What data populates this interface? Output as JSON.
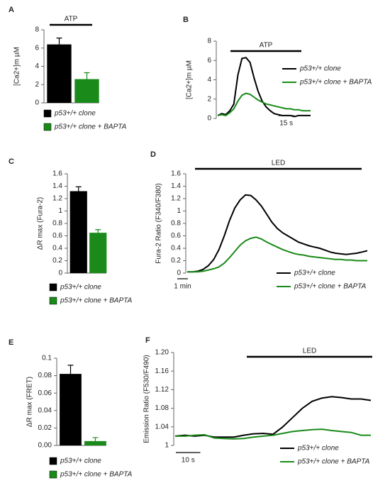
{
  "chart_data": [
    {
      "type": "bar",
      "panel": "A",
      "ylabel": "[Ca2+]m µM",
      "annotation": "ATP",
      "ylim": [
        0,
        8
      ],
      "yticks": [
        0,
        2,
        4,
        6,
        8
      ],
      "series": [
        {
          "name": "p53+/+ clone",
          "color": "#000000",
          "values": [
            6.4
          ],
          "errors": [
            0.7
          ]
        },
        {
          "name": "p53+/+ clone + BAPTA",
          "color": "#1a8a1a",
          "values": [
            2.6
          ],
          "errors": [
            0.7
          ]
        }
      ]
    },
    {
      "type": "line",
      "panel": "B",
      "ylabel": "[Ca2+]m µM",
      "annotation": "ATP",
      "ylim": [
        0,
        8
      ],
      "yticks": [
        0,
        2,
        4,
        6,
        8
      ],
      "scale_bar": {
        "value": 15,
        "label": "15 s"
      },
      "x": [
        0,
        4,
        8,
        12,
        16,
        20,
        24,
        28,
        32,
        36,
        40,
        44,
        48,
        52,
        56,
        60,
        64,
        68,
        72,
        76,
        80,
        84,
        88,
        92
      ],
      "series": [
        {
          "name": "p53+/+ clone",
          "color": "#000000",
          "values": [
            0.3,
            0.5,
            0.4,
            0.8,
            1.5,
            4.5,
            6.2,
            6.3,
            5.8,
            4.2,
            2.8,
            1.8,
            1.2,
            0.8,
            0.5,
            0.4,
            0.3,
            0.3,
            0.3,
            0.2,
            0.3,
            0.3,
            0.3,
            0.3
          ]
        },
        {
          "name": "p53+/+ clone + BAPTA",
          "color": "#1a8a1a",
          "values": [
            0.3,
            0.4,
            0.3,
            0.6,
            1.0,
            1.8,
            2.4,
            2.6,
            2.5,
            2.2,
            1.9,
            1.7,
            1.5,
            1.4,
            1.3,
            1.2,
            1.1,
            1.0,
            1.0,
            0.9,
            0.9,
            0.8,
            0.8,
            0.8
          ]
        }
      ]
    },
    {
      "type": "bar",
      "panel": "C",
      "ylabel": "ΔR max (Fura-2)",
      "ylim": [
        0,
        1.6
      ],
      "yticks": [
        0,
        0.2,
        0.4,
        0.6,
        0.8,
        1,
        1.2,
        1.4,
        1.6
      ],
      "series": [
        {
          "name": "p53+/+ clone",
          "color": "#000000",
          "values": [
            1.32
          ],
          "errors": [
            0.07
          ]
        },
        {
          "name": "p53+/+ clone + BAPTA",
          "color": "#1a8a1a",
          "values": [
            0.65
          ],
          "errors": [
            0.05
          ]
        }
      ]
    },
    {
      "type": "line",
      "panel": "D",
      "ylabel": "Fura-2 Ratio (F340/F380)",
      "annotation": "LED",
      "ylim": [
        0,
        1.6
      ],
      "yticks": [
        0,
        0.2,
        0.4,
        0.6,
        0.8,
        1,
        1.2,
        1.4,
        1.6
      ],
      "scale_bar": {
        "value": 1,
        "label": "1 min"
      },
      "x": [
        0,
        0.5,
        1,
        1.5,
        2,
        2.5,
        3,
        3.5,
        4,
        4.5,
        5,
        5.5,
        6,
        6.5,
        7,
        7.5,
        8,
        8.5,
        9,
        9.5,
        10,
        10.5,
        11,
        11.5,
        12,
        12.5,
        13,
        13.5,
        14,
        14.5,
        15,
        15.5,
        16,
        16.5,
        17
      ],
      "series": [
        {
          "name": "p53+/+ clone",
          "color": "#000000",
          "values": [
            0.02,
            0.02,
            0.03,
            0.06,
            0.12,
            0.22,
            0.38,
            0.6,
            0.85,
            1.05,
            1.18,
            1.26,
            1.25,
            1.18,
            1.08,
            0.95,
            0.82,
            0.72,
            0.65,
            0.6,
            0.55,
            0.5,
            0.47,
            0.44,
            0.42,
            0.4,
            0.37,
            0.34,
            0.32,
            0.31,
            0.3,
            0.31,
            0.32,
            0.34,
            0.36
          ]
        },
        {
          "name": "p53+/+ clone + BAPTA",
          "color": "#1a8a1a",
          "values": [
            0.02,
            0.02,
            0.02,
            0.03,
            0.05,
            0.07,
            0.1,
            0.16,
            0.25,
            0.35,
            0.45,
            0.52,
            0.56,
            0.58,
            0.55,
            0.5,
            0.46,
            0.42,
            0.38,
            0.35,
            0.32,
            0.3,
            0.29,
            0.27,
            0.26,
            0.25,
            0.24,
            0.23,
            0.22,
            0.22,
            0.21,
            0.21,
            0.2,
            0.2,
            0.2
          ]
        }
      ]
    },
    {
      "type": "bar",
      "panel": "E",
      "ylabel": "ΔR max (FRET)",
      "ylim": [
        0,
        0.1
      ],
      "yticks": [
        {
          "value": 0,
          "label": "0.00"
        },
        0.02,
        0.04,
        0.06,
        0.08,
        0.1
      ],
      "series": [
        {
          "name": "p53+/+ clone",
          "color": "#000000",
          "values": [
            0.082
          ],
          "errors": [
            0.01
          ]
        },
        {
          "name": "p53+/+ clone + BAPTA",
          "color": "#1a8a1a",
          "values": [
            0.005
          ],
          "errors": [
            0.004
          ]
        }
      ]
    },
    {
      "type": "line",
      "panel": "F",
      "ylabel": "Emission Ratio (F530/F490)",
      "annotation": "LED",
      "ylim": [
        1,
        1.2
      ],
      "yticks": [
        1,
        1.04,
        1.08,
        1.12,
        1.16,
        {
          "value": 1.2,
          "label": "1.20"
        }
      ],
      "scale_bar": {
        "value": 10,
        "label": "10 s"
      },
      "x": [
        0,
        4,
        8,
        12,
        16,
        20,
        24,
        28,
        32,
        36,
        40,
        44,
        48,
        52,
        56,
        60,
        64,
        68,
        72,
        76,
        80
      ],
      "series": [
        {
          "name": "p53+/+ clone",
          "color": "#000000",
          "values": [
            1.02,
            1.022,
            1.02,
            1.022,
            1.018,
            1.018,
            1.018,
            1.022,
            1.025,
            1.026,
            1.024,
            1.04,
            1.06,
            1.08,
            1.095,
            1.102,
            1.105,
            1.103,
            1.1,
            1.1,
            1.097
          ]
        },
        {
          "name": "p53+/+ clone + BAPTA",
          "color": "#1a8a1a",
          "values": [
            1.02,
            1.02,
            1.022,
            1.023,
            1.016,
            1.015,
            1.014,
            1.015,
            1.018,
            1.02,
            1.022,
            1.026,
            1.03,
            1.032,
            1.034,
            1.035,
            1.032,
            1.03,
            1.028,
            1.022,
            1.022
          ]
        }
      ]
    }
  ]
}
